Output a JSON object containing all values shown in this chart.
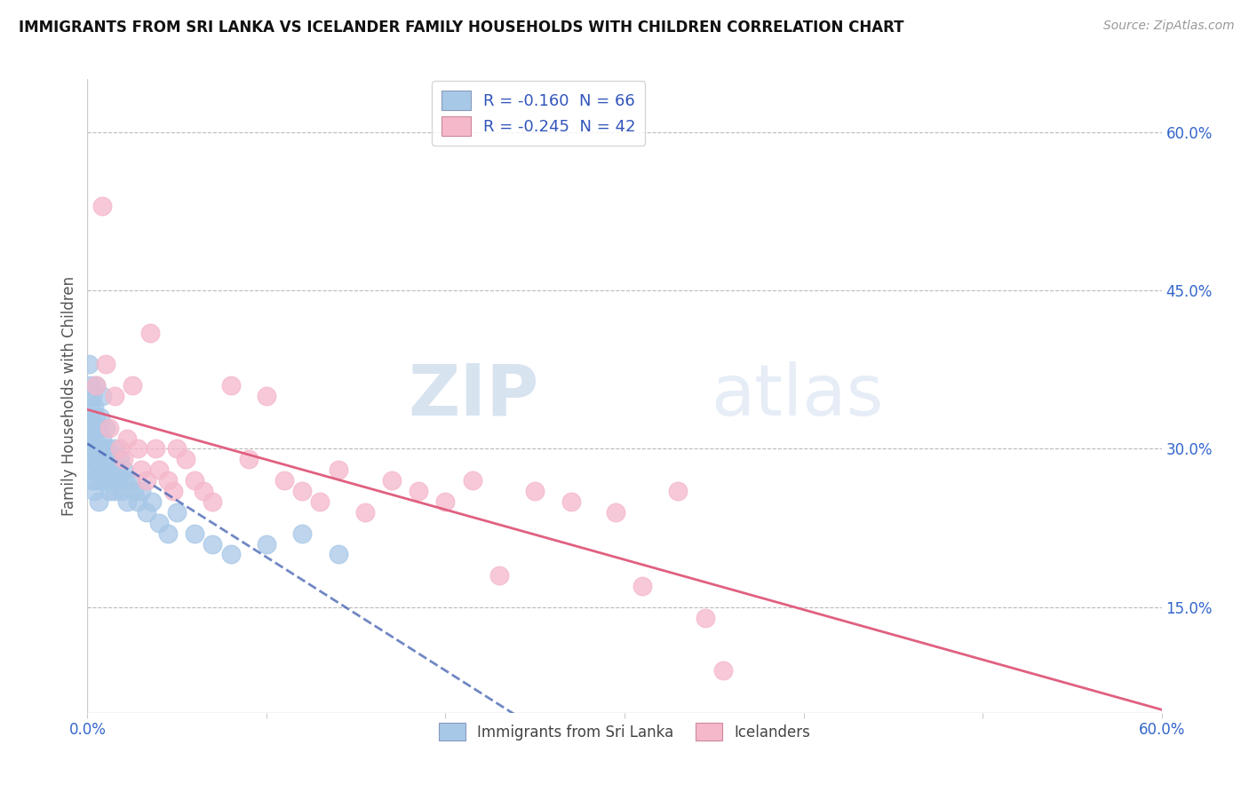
{
  "title": "IMMIGRANTS FROM SRI LANKA VS ICELANDER FAMILY HOUSEHOLDS WITH CHILDREN CORRELATION CHART",
  "source": "Source: ZipAtlas.com",
  "ylabel": "Family Households with Children",
  "xlim": [
    0.0,
    0.6
  ],
  "ylim": [
    0.05,
    0.65
  ],
  "x_ticks": [
    0.0,
    0.1,
    0.2,
    0.3,
    0.4,
    0.5,
    0.6
  ],
  "x_tick_labels": [
    "0.0%",
    "",
    "",
    "",
    "",
    "",
    "60.0%"
  ],
  "y_ticks_right": [
    0.15,
    0.3,
    0.45,
    0.6
  ],
  "y_tick_labels_right": [
    "15.0%",
    "30.0%",
    "45.0%",
    "60.0%"
  ],
  "legend1_label": "R = -0.160  N = 66",
  "legend2_label": "R = -0.245  N = 42",
  "sri_lanka_color": "#a8c8e8",
  "icelander_color": "#f5b8cb",
  "trend_sri_lanka_color": "#3355aa",
  "trend_icelander_color": "#e06080",
  "background_color": "#ffffff",
  "sri_lanka_x": [
    0.001,
    0.001,
    0.001,
    0.001,
    0.002,
    0.002,
    0.002,
    0.002,
    0.002,
    0.002,
    0.003,
    0.003,
    0.003,
    0.003,
    0.003,
    0.004,
    0.004,
    0.004,
    0.004,
    0.005,
    0.005,
    0.005,
    0.005,
    0.006,
    0.006,
    0.006,
    0.007,
    0.007,
    0.007,
    0.008,
    0.008,
    0.008,
    0.009,
    0.009,
    0.01,
    0.01,
    0.011,
    0.011,
    0.012,
    0.012,
    0.013,
    0.014,
    0.015,
    0.015,
    0.016,
    0.017,
    0.018,
    0.019,
    0.02,
    0.021,
    0.022,
    0.024,
    0.026,
    0.028,
    0.03,
    0.033,
    0.036,
    0.04,
    0.045,
    0.05,
    0.06,
    0.07,
    0.08,
    0.1,
    0.12,
    0.14
  ],
  "sri_lanka_y": [
    0.32,
    0.29,
    0.35,
    0.38,
    0.3,
    0.33,
    0.36,
    0.28,
    0.31,
    0.34,
    0.29,
    0.32,
    0.35,
    0.27,
    0.3,
    0.31,
    0.34,
    0.28,
    0.26,
    0.3,
    0.33,
    0.27,
    0.36,
    0.29,
    0.32,
    0.25,
    0.3,
    0.28,
    0.33,
    0.27,
    0.31,
    0.35,
    0.28,
    0.3,
    0.29,
    0.32,
    0.27,
    0.3,
    0.26,
    0.29,
    0.28,
    0.27,
    0.3,
    0.26,
    0.28,
    0.27,
    0.29,
    0.26,
    0.28,
    0.27,
    0.25,
    0.27,
    0.26,
    0.25,
    0.26,
    0.24,
    0.25,
    0.23,
    0.22,
    0.24,
    0.22,
    0.21,
    0.2,
    0.21,
    0.22,
    0.2
  ],
  "icelander_x": [
    0.005,
    0.008,
    0.01,
    0.012,
    0.015,
    0.018,
    0.02,
    0.022,
    0.025,
    0.028,
    0.03,
    0.033,
    0.035,
    0.038,
    0.04,
    0.045,
    0.048,
    0.05,
    0.055,
    0.06,
    0.065,
    0.07,
    0.08,
    0.09,
    0.1,
    0.11,
    0.12,
    0.13,
    0.14,
    0.155,
    0.17,
    0.185,
    0.2,
    0.215,
    0.23,
    0.25,
    0.27,
    0.295,
    0.31,
    0.33,
    0.345,
    0.355
  ],
  "icelander_y": [
    0.36,
    0.53,
    0.38,
    0.32,
    0.35,
    0.3,
    0.29,
    0.31,
    0.36,
    0.3,
    0.28,
    0.27,
    0.41,
    0.3,
    0.28,
    0.27,
    0.26,
    0.3,
    0.29,
    0.27,
    0.26,
    0.25,
    0.36,
    0.29,
    0.35,
    0.27,
    0.26,
    0.25,
    0.28,
    0.24,
    0.27,
    0.26,
    0.25,
    0.27,
    0.18,
    0.26,
    0.25,
    0.24,
    0.17,
    0.26,
    0.14,
    0.09
  ]
}
